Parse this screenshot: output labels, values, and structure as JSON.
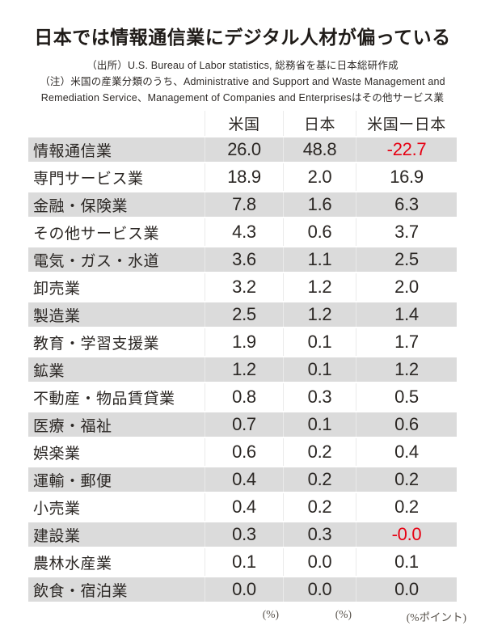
{
  "title": "日本では情報通信業にデジタル人材が偏っている",
  "source": "（出所）U.S. Bureau of Labor statistics, 総務省を基に日本総研作成",
  "note_line1": "（注）米国の産業分類のうち、Administrative and Support and Waste Management and",
  "note_line2": "Remediation Service、Management of Companies and Enterprisesはその他サービス業",
  "colors": {
    "negative": "#e60012",
    "row_alt_background": "#dbdbdb",
    "text": "#2b2724"
  },
  "chart_data": {
    "type": "table",
    "columns": [
      "",
      "米国",
      "日本",
      "米国ー日本"
    ],
    "units": [
      "",
      "(%)",
      "(%)",
      "(%ポイント)"
    ],
    "rows": [
      {
        "label": "情報通信業",
        "us": "26.0",
        "jp": "48.8",
        "diff": "-22.7"
      },
      {
        "label": "専門サービス業",
        "us": "18.9",
        "jp": "2.0",
        "diff": "16.9"
      },
      {
        "label": "金融・保険業",
        "us": "7.8",
        "jp": "1.6",
        "diff": "6.3"
      },
      {
        "label": "その他サービス業",
        "us": "4.3",
        "jp": "0.6",
        "diff": "3.7"
      },
      {
        "label": "電気・ガス・水道",
        "us": "3.6",
        "jp": "1.1",
        "diff": "2.5"
      },
      {
        "label": "卸売業",
        "us": "3.2",
        "jp": "1.2",
        "diff": "2.0"
      },
      {
        "label": "製造業",
        "us": "2.5",
        "jp": "1.2",
        "diff": "1.4"
      },
      {
        "label": "教育・学習支援業",
        "us": "1.9",
        "jp": "0.1",
        "diff": "1.7"
      },
      {
        "label": "鉱業",
        "us": "1.2",
        "jp": "0.1",
        "diff": "1.2"
      },
      {
        "label": "不動産・物品賃貸業",
        "us": "0.8",
        "jp": "0.3",
        "diff": "0.5"
      },
      {
        "label": "医療・福祉",
        "us": "0.7",
        "jp": "0.1",
        "diff": "0.6"
      },
      {
        "label": "娯楽業",
        "us": "0.6",
        "jp": "0.2",
        "diff": "0.4"
      },
      {
        "label": "運輸・郵便",
        "us": "0.4",
        "jp": "0.2",
        "diff": "0.2"
      },
      {
        "label": "小売業",
        "us": "0.4",
        "jp": "0.2",
        "diff": "0.2"
      },
      {
        "label": "建設業",
        "us": "0.3",
        "jp": "0.3",
        "diff": "-0.0"
      },
      {
        "label": "農林水産業",
        "us": "0.1",
        "jp": "0.0",
        "diff": "0.1"
      },
      {
        "label": "飲食・宿泊業",
        "us": "0.0",
        "jp": "0.0",
        "diff": "0.0"
      }
    ]
  }
}
